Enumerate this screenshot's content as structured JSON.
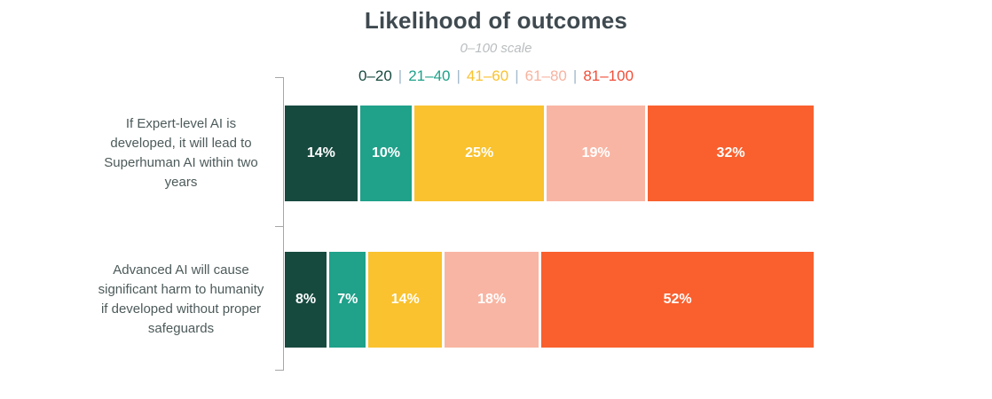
{
  "header": {
    "title": "Likelihood of outcomes",
    "subtitle": "0–100 scale"
  },
  "legend": {
    "separator": "|",
    "separator_color": "#a4bacd",
    "items": [
      {
        "label": "0–20",
        "color": "#174a3f"
      },
      {
        "label": "21–40",
        "color": "#1fa18a"
      },
      {
        "label": "41–60",
        "color": "#f9c22e"
      },
      {
        "label": "61–80",
        "color": "#f7b3a0"
      },
      {
        "label": "81–100",
        "color": "#f14e38"
      }
    ]
  },
  "chart_data": {
    "type": "bar",
    "orientation": "horizontal",
    "stacked": true,
    "title": "Likelihood of outcomes",
    "subtitle": "0–100 scale",
    "unit": "%",
    "xlim": [
      0,
      100
    ],
    "legend_position": "top",
    "grid": false,
    "categories": [
      "If Expert-level AI is developed, it will lead to Superhuman AI within two years",
      "Advanced AI will cause significant harm to humanity if developed without proper safeguards"
    ],
    "series": [
      {
        "name": "0–20",
        "color": "#174a3f",
        "values": [
          14,
          8
        ]
      },
      {
        "name": "21–40",
        "color": "#1fa18a",
        "values": [
          10,
          7
        ]
      },
      {
        "name": "41–60",
        "color": "#f9c22e",
        "values": [
          25,
          14
        ]
      },
      {
        "name": "61–80",
        "color": "#f9b5a3",
        "values": [
          19,
          18
        ]
      },
      {
        "name": "81–100",
        "color": "#f9602e",
        "values": [
          32,
          52
        ]
      }
    ],
    "value_labels": [
      [
        "14%",
        "10%",
        "25%",
        "19%",
        "32%"
      ],
      [
        "8%",
        "7%",
        "14%",
        "18%",
        "52%"
      ]
    ],
    "value_label_color": "#ffffff"
  },
  "colors": {
    "title": "#3f4a50",
    "subtitle": "#b9bdbf",
    "category_label": "#4d5a5a",
    "axis": "#a6a6a6",
    "background": "#ffffff"
  }
}
